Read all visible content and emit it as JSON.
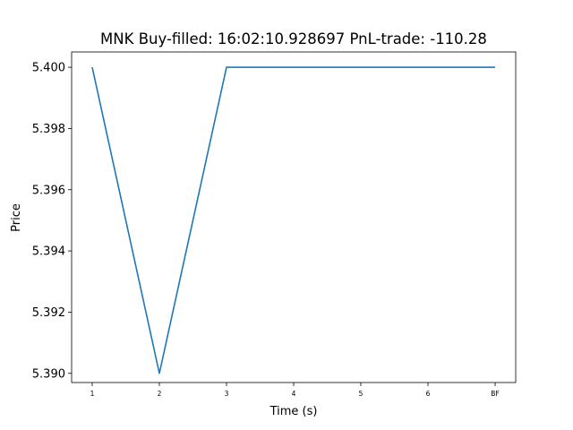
{
  "chart_data": {
    "type": "line",
    "title": "MNK  Buy-filled:  16:02:10.928697  PnL-trade:  -110.28",
    "xlabel": "Time (s)",
    "ylabel": "Price",
    "categories": [
      "1",
      "2",
      "3",
      "4",
      "5",
      "6",
      "BF"
    ],
    "series": [
      {
        "values": [
          5.4,
          5.39,
          5.4,
          5.4,
          5.4,
          5.4,
          5.4
        ],
        "color": "#1f77b4"
      }
    ],
    "ylim": [
      5.3897,
      5.4005
    ],
    "yticks": [
      5.39,
      5.392,
      5.394,
      5.396,
      5.398,
      5.4
    ],
    "ytick_labels": [
      "5.390",
      "5.392",
      "5.394",
      "5.396",
      "5.398",
      "5.400"
    ],
    "grid": false,
    "legend": "none"
  }
}
